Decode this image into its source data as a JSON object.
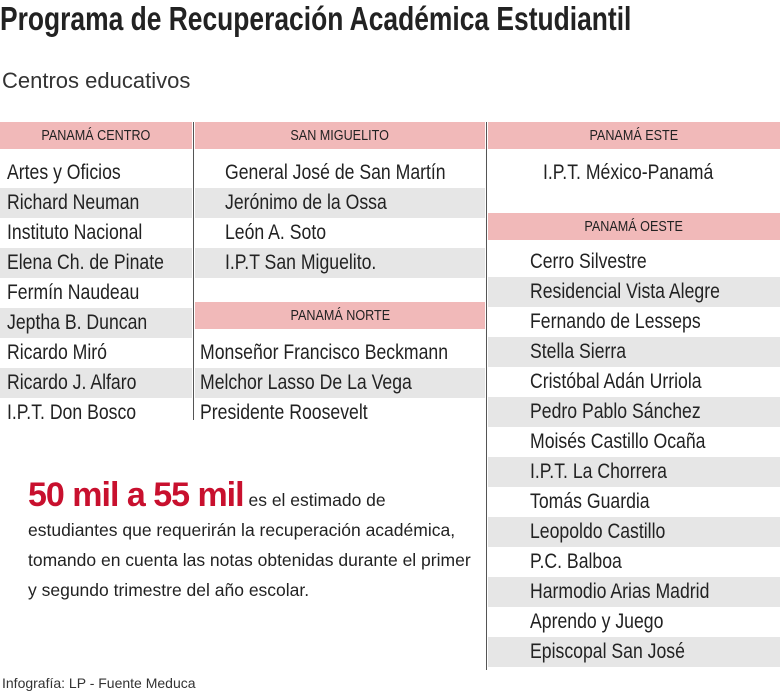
{
  "header": {
    "title": "Programa de Recuperación Académica Estudiantil",
    "subtitle": "Centros educativos"
  },
  "regions": [
    {
      "name": "PANAMÁ CENTRO",
      "schools": [
        "Artes y Oficios",
        "Richard Neuman",
        "Instituto Nacional",
        "Elena Ch. de Pinate",
        "Fermín Naudeau",
        "Jeptha B. Duncan",
        "Ricardo Miró",
        "Ricardo J. Alfaro",
        "I.P.T. Don Bosco"
      ]
    },
    {
      "name": "SAN MIGUELITO",
      "schools": [
        "General José de San Martín",
        "Jerónimo de la Ossa",
        "León A. Soto",
        "I.P.T San Miguelito."
      ]
    },
    {
      "name": "PANAMÁ NORTE",
      "schools": [
        "Monseñor Francisco Beckmann",
        "Melchor Lasso De La Vega",
        "Presidente Roosevelt"
      ]
    },
    {
      "name": "PANAMÁ ESTE",
      "schools": [
        "I.P.T. México-Panamá"
      ]
    },
    {
      "name": "PANAMÁ OESTE",
      "schools": [
        "Cerro Silvestre",
        "Residencial Vista Alegre",
        "Fernando de Lesseps",
        "Stella Sierra",
        "Cristóbal Adán Urriola",
        "Pedro Pablo Sánchez",
        "Moisés Castillo Ocaña",
        "I.P.T. La Chorrera",
        "Tomás Guardia",
        "Leopoldo Castillo",
        "P.C. Balboa",
        "Harmodio Arias Madrid",
        "Aprendo y Juego",
        "Episcopal San José"
      ]
    }
  ],
  "highlight": {
    "figure": "50 mil a 55 mil",
    "text": "es el estimado de estudiantes que requerirán la recuperación académica, tomando en cuenta las notas obtenidas durante el primer y segundo trimestre del año escolar."
  },
  "source": "Infografía: LP - Fuente Meduca"
}
